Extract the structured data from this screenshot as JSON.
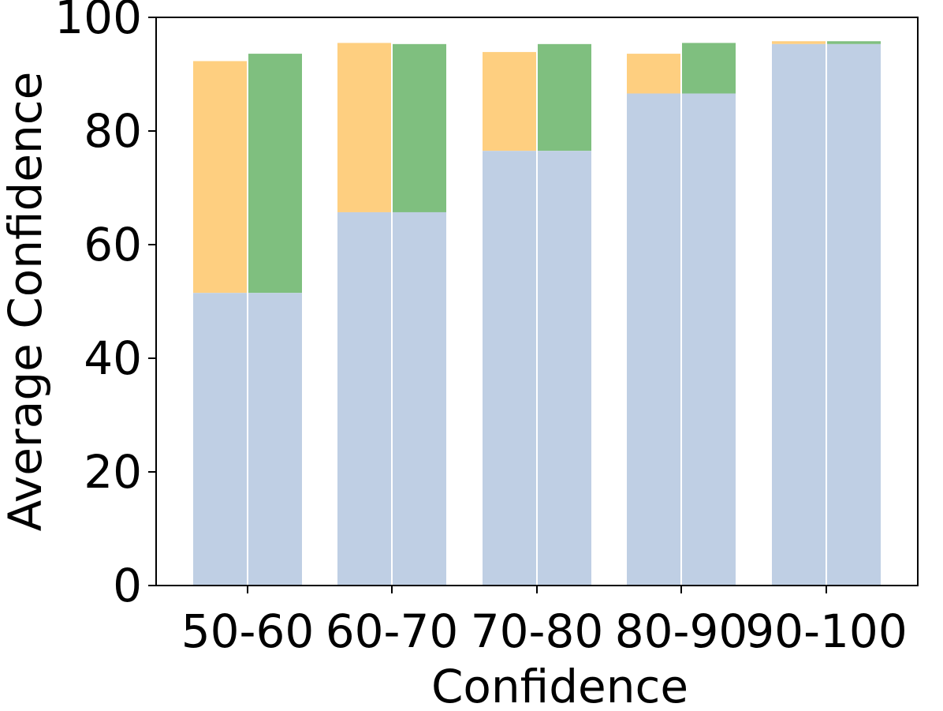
{
  "chart_data": {
    "type": "bar",
    "title": "",
    "xlabel": "Confidence",
    "ylabel": "Average Confidence",
    "categories": [
      "50-60",
      "60-70",
      "70-80",
      "80-90",
      "90-100"
    ],
    "ylim": [
      0,
      100
    ],
    "yticks": [
      "0",
      "20",
      "40",
      "60",
      "80",
      "100"
    ],
    "grid": false,
    "legend": "none",
    "base_series": {
      "values": [
        51.5,
        65.7,
        76.5,
        86.6,
        95.3
      ],
      "color": "#bfcfe4"
    },
    "series": [
      {
        "values": [
          92.3,
          95.5,
          93.9,
          93.6,
          95.8
        ],
        "color": "#fecf80"
      },
      {
        "values": [
          93.6,
          95.3,
          95.3,
          95.5,
          95.8
        ],
        "color": "#7fbf7f"
      }
    ]
  }
}
